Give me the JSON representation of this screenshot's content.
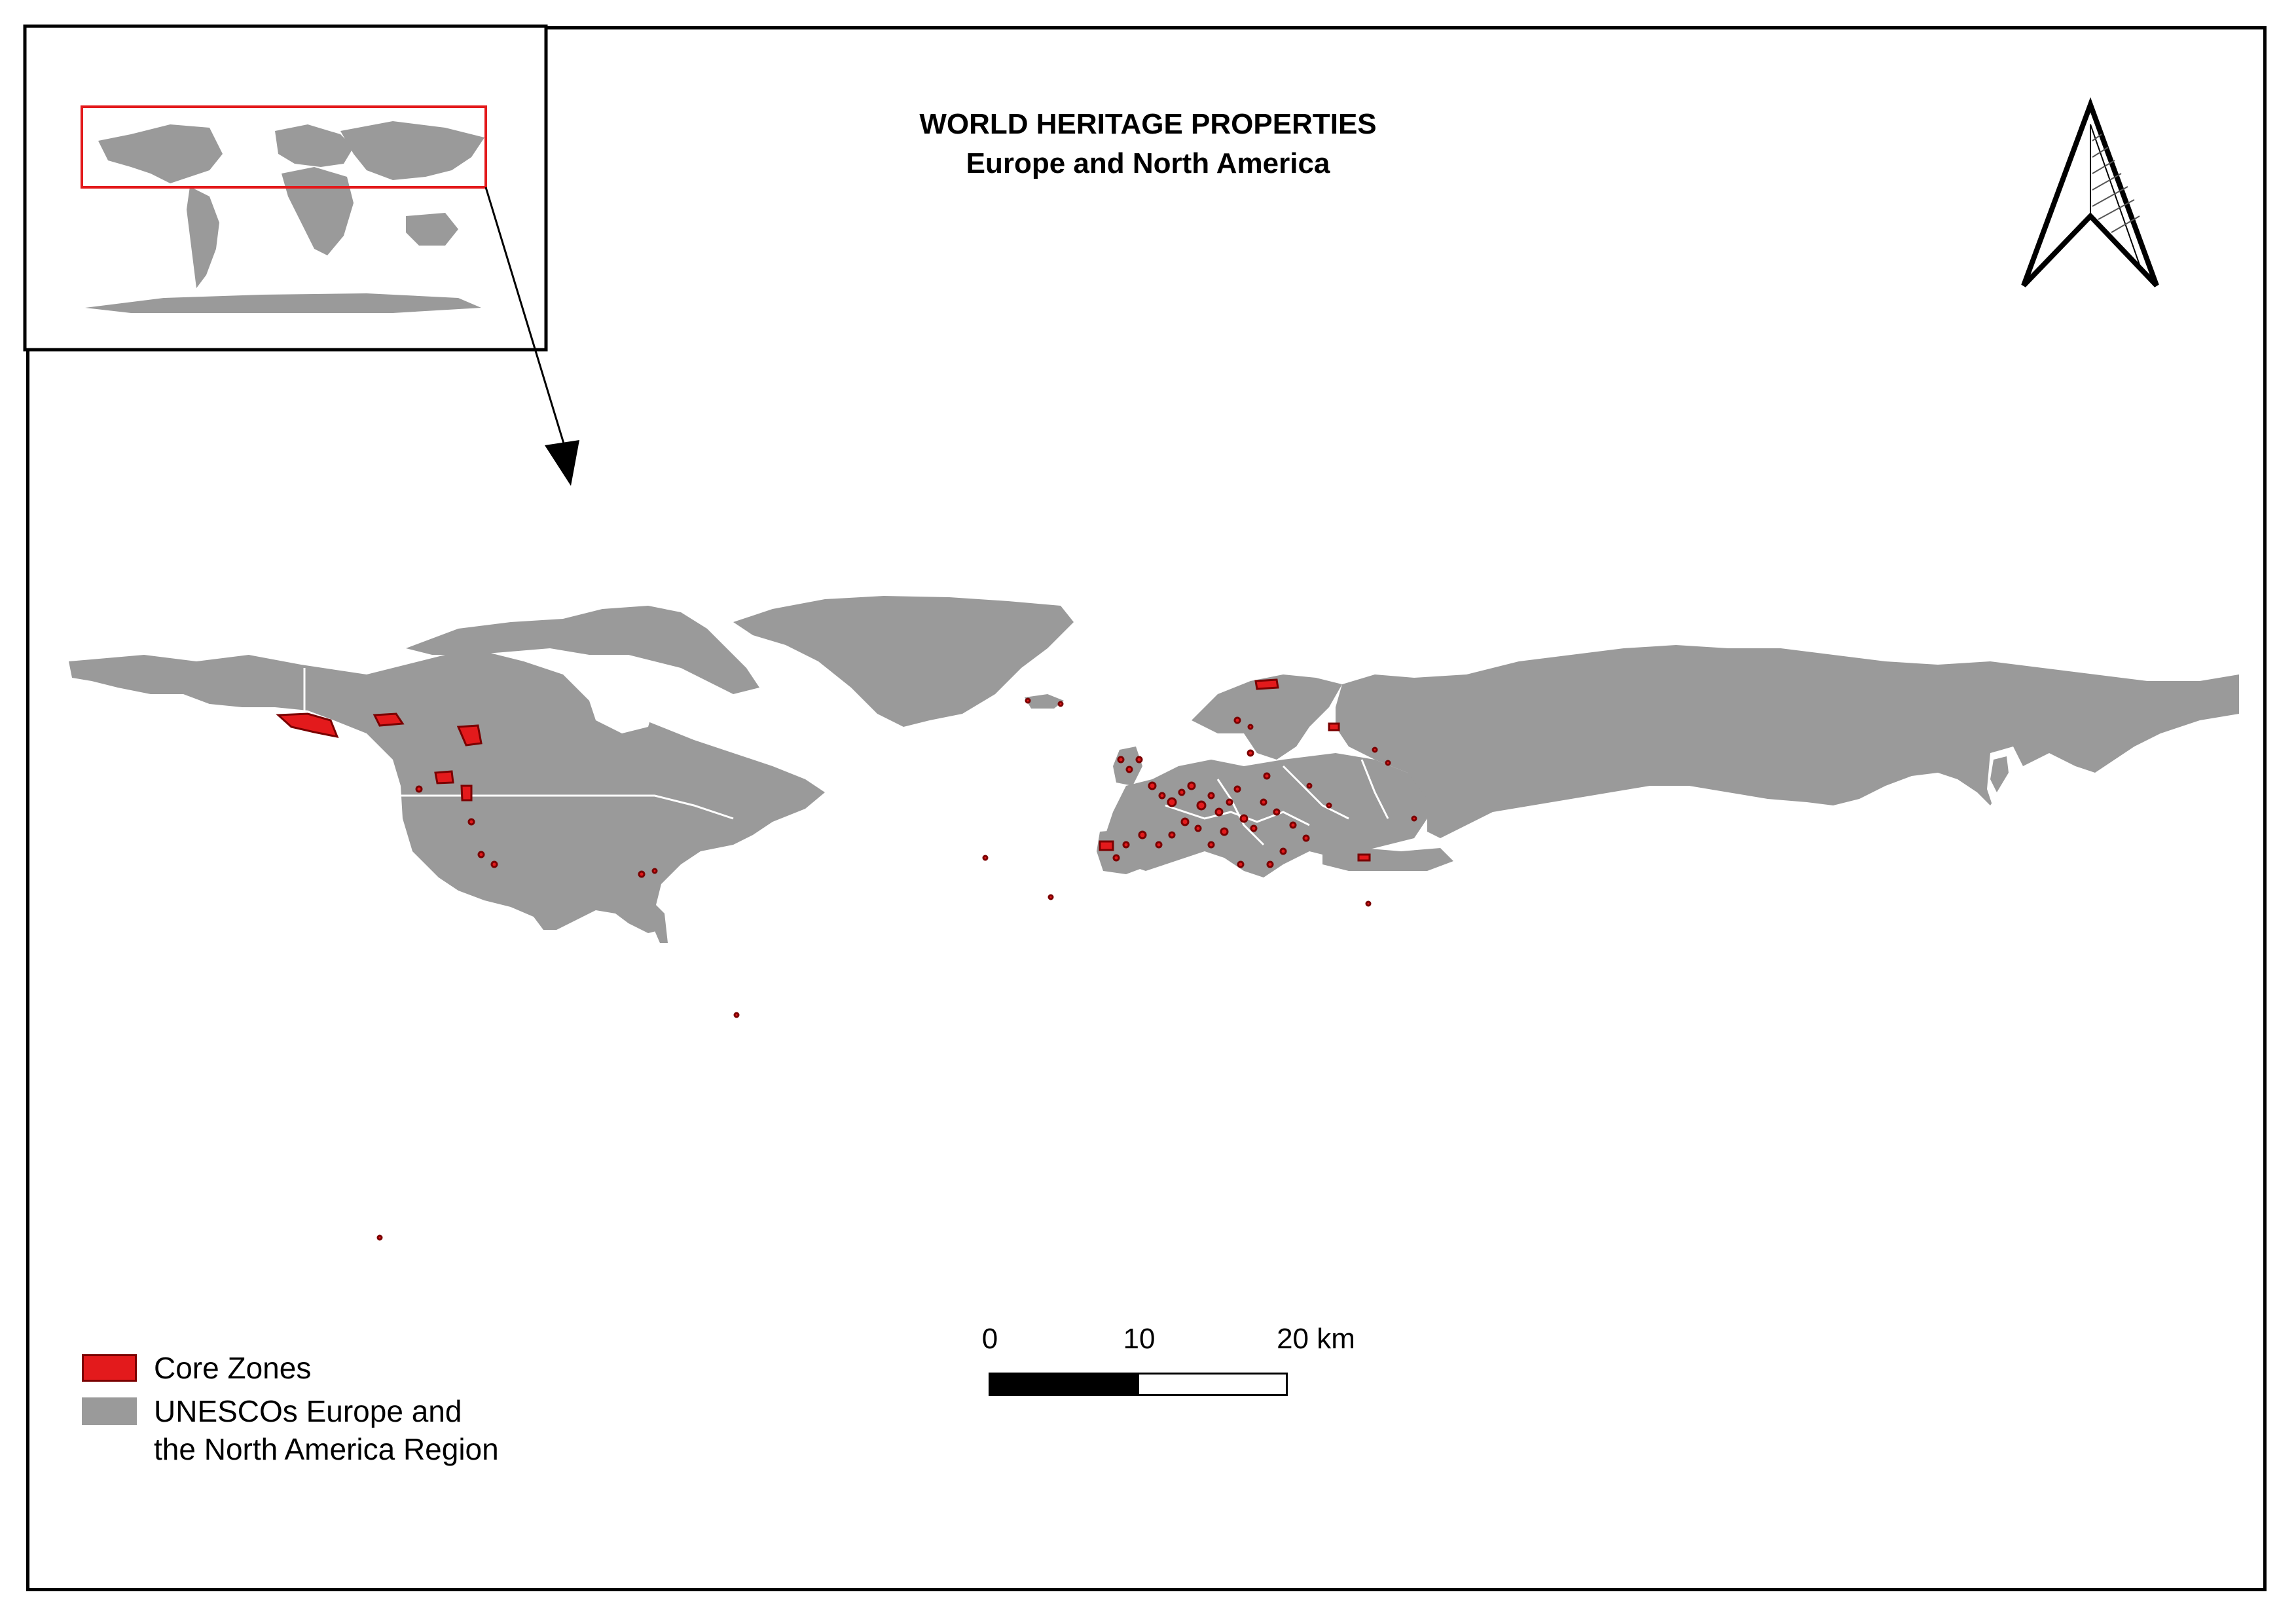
{
  "title": {
    "line1": "WORLD HERITAGE PROPERTIES",
    "line2": "Europe and North America"
  },
  "colors": {
    "core_zone_fill": "#e31a1c",
    "core_zone_stroke": "#7a0000",
    "region_fill": "#9a9a9a",
    "extent_box": "#e31a1c",
    "frame": "#000000"
  },
  "icons": {
    "north_arrow": "north-arrow-icon"
  },
  "legend": {
    "items": [
      {
        "label": "Core Zones",
        "symbol": "core-zone-swatch"
      },
      {
        "label": "UNESCOs Europe and\nthe North America Region",
        "symbol": "region-swatch"
      }
    ]
  },
  "scalebar": {
    "tick_0": "0",
    "tick_1": "10",
    "tick_2": "20 km"
  }
}
